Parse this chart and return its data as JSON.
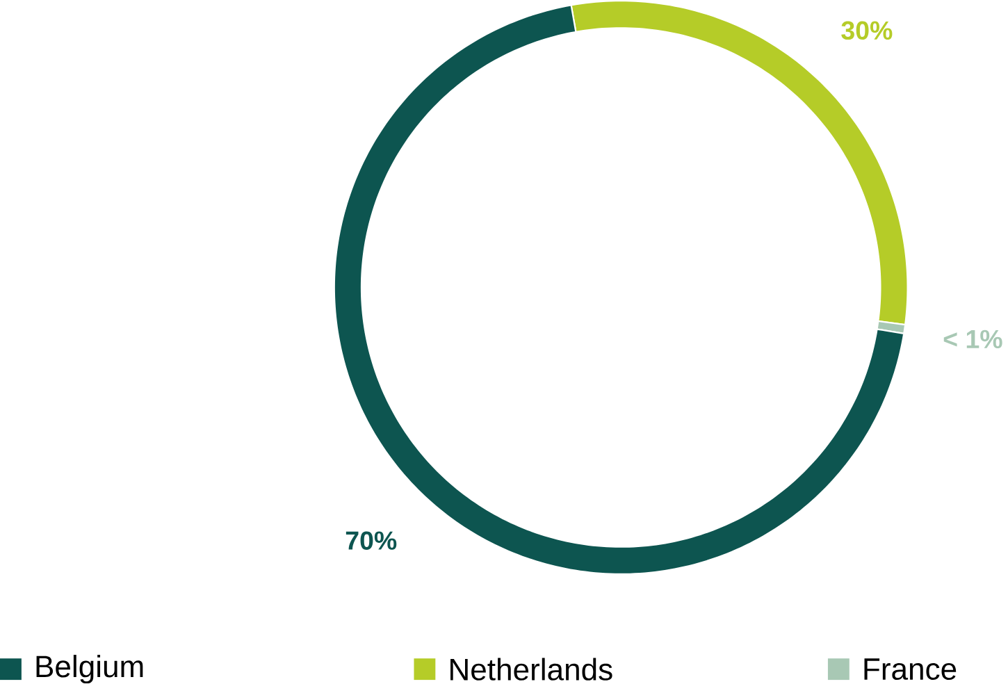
{
  "chart_data": {
    "type": "donut",
    "categories": [
      "Belgium",
      "Netherlands",
      "France"
    ],
    "values": [
      70,
      30,
      0.5
    ],
    "value_labels": [
      "70%",
      "30%",
      "< 1%"
    ],
    "colors": [
      "#0d5550",
      "#b5cc28",
      "#a8c8b4"
    ],
    "legend": "bottom"
  }
}
